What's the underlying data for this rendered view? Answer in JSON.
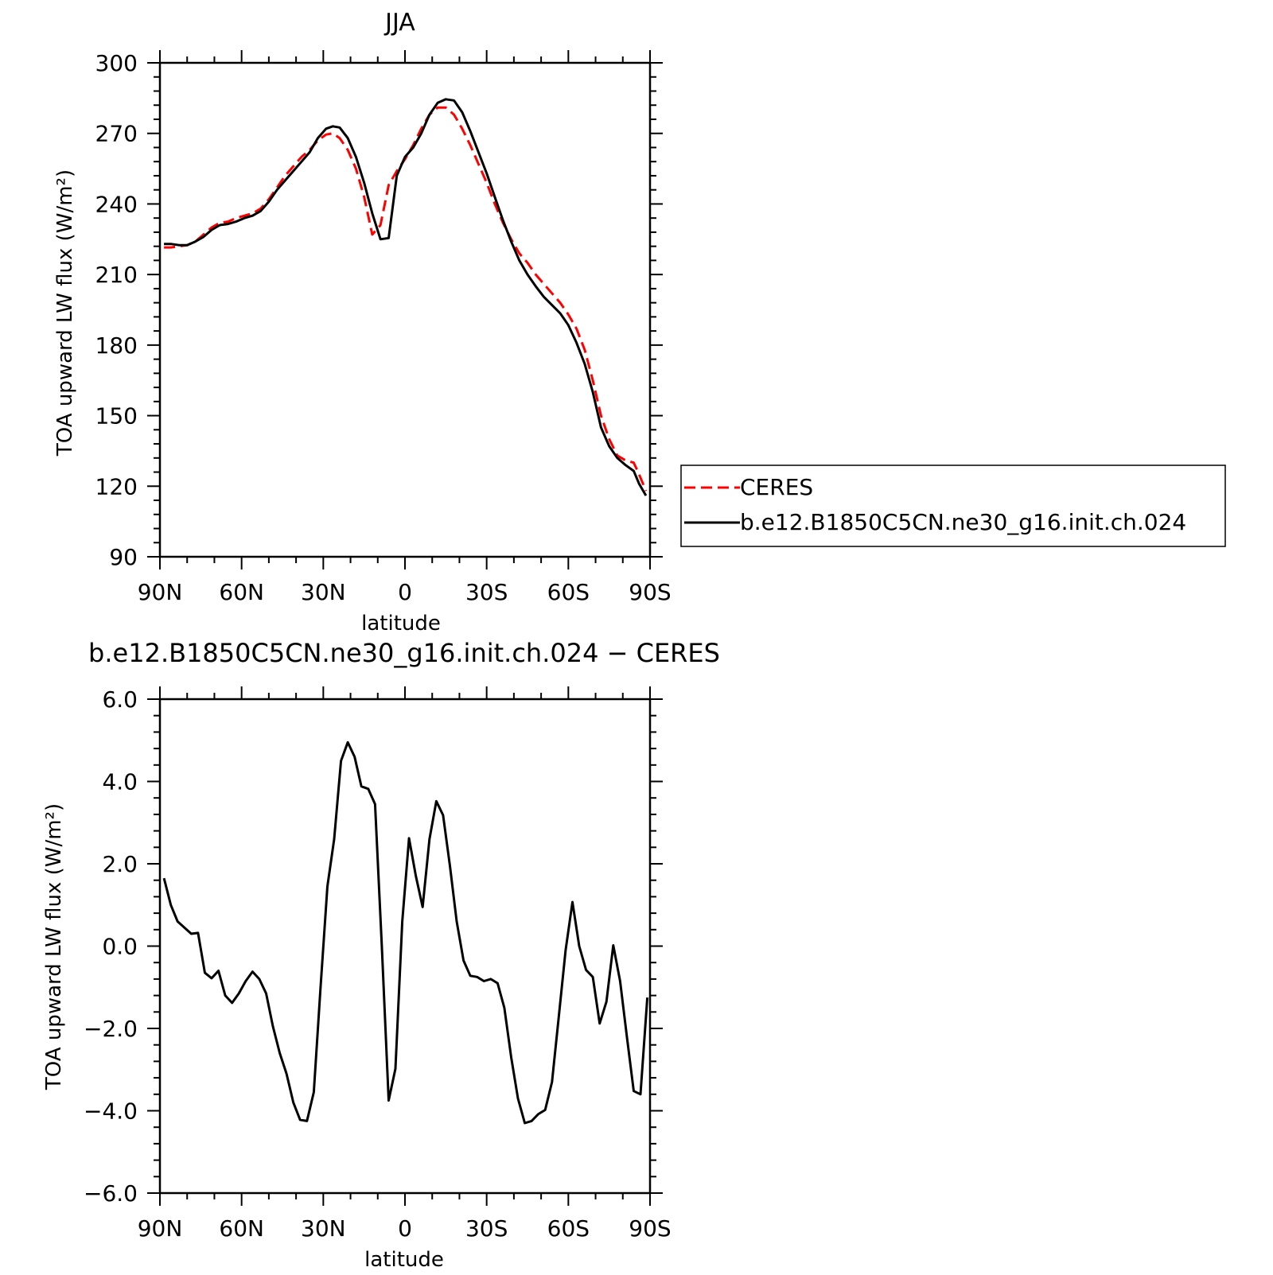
{
  "chart_data": [
    {
      "type": "line",
      "title": "JJA",
      "xlabel": "latitude",
      "ylabel": "TOA upward LW flux (W/m²)",
      "ylim": [
        90,
        300
      ],
      "yticks": [
        "90",
        "120",
        "150",
        "180",
        "210",
        "240",
        "270",
        "300"
      ],
      "xlim": [
        90,
        -90
      ],
      "xticks": [
        "90N",
        "60N",
        "30N",
        "0",
        "30S",
        "60S",
        "90S"
      ],
      "grid": false,
      "legend_position": "right",
      "series": [
        {
          "name": "CERES",
          "color": "#ff0000",
          "style": "dashed",
          "x": [
            88.5,
            86,
            83,
            80,
            77,
            74,
            71,
            68,
            65,
            62,
            59,
            56,
            53,
            50,
            47,
            44,
            41,
            38,
            35,
            32,
            29,
            26.5,
            24,
            21,
            18,
            15,
            12,
            9,
            6,
            3,
            0,
            -3,
            -6,
            -9,
            -12,
            -15,
            -18,
            -21,
            -24,
            -27,
            -30,
            -33,
            -36,
            -39,
            -42,
            -45,
            -48,
            -51,
            -54,
            -57,
            -60,
            -63,
            -66,
            -69,
            -72,
            -75,
            -78,
            -81,
            -84,
            -86,
            -88.5
          ],
          "y": [
            221.5,
            221.5,
            222,
            222.5,
            224,
            227,
            230,
            232,
            232.5,
            234,
            235,
            236,
            238,
            242,
            247,
            252,
            256,
            260,
            263,
            267,
            269.5,
            270,
            268,
            263,
            255,
            243,
            227,
            231,
            248,
            254,
            259,
            265,
            272,
            278,
            281,
            281,
            278,
            272,
            265,
            257,
            249,
            240,
            232,
            225,
            219,
            215,
            210,
            206,
            202,
            198,
            193,
            187,
            178,
            165,
            150,
            140,
            133,
            131,
            130,
            125,
            118
          ]
        },
        {
          "name": "b.e12.B1850C5CN.ne30_g16.init.ch.024",
          "color": "#000000",
          "style": "solid",
          "x": [
            88.5,
            86,
            83,
            80,
            77,
            74,
            71,
            68,
            65,
            62,
            59,
            56,
            53,
            50,
            47,
            44,
            41,
            38,
            35,
            32,
            29,
            26.5,
            24,
            21,
            18,
            15,
            12,
            9,
            6,
            3,
            0,
            -3,
            -6,
            -9,
            -12,
            -15,
            -18,
            -21,
            -24,
            -27,
            -30,
            -33,
            -36,
            -39,
            -42,
            -45,
            -48,
            -51,
            -54,
            -57,
            -60,
            -63,
            -66,
            -69,
            -72,
            -75,
            -78,
            -81,
            -84,
            -86,
            -88.5
          ],
          "y": [
            223,
            223,
            222.5,
            222.5,
            224,
            226,
            229,
            231,
            231.5,
            232.5,
            234,
            235,
            237,
            241,
            246,
            250,
            254,
            258,
            262,
            268,
            272,
            273,
            272.5,
            268,
            260,
            249,
            236,
            225,
            225.5,
            252,
            260,
            264,
            270,
            278,
            283,
            284.5,
            284,
            279,
            271,
            262,
            253,
            243,
            233,
            224,
            216,
            210,
            205,
            200.5,
            197,
            193.5,
            188.5,
            181,
            172,
            160,
            145,
            137,
            132,
            129,
            126.5,
            121,
            116
          ]
        }
      ]
    },
    {
      "type": "line",
      "title": "b.e12.B1850C5CN.ne30_g16.init.ch.024 − CERES",
      "xlabel": "latitude",
      "ylabel": "TOA upward LW flux (W/m²)",
      "ylim": [
        -6,
        6
      ],
      "yticks": [
        "−6.0",
        "−4.0",
        "−2.0",
        "0.0",
        "2.0",
        "4.0",
        "6.0"
      ],
      "xlim": [
        90,
        -90
      ],
      "xticks": [
        "90N",
        "60N",
        "30N",
        "0",
        "30S",
        "60S",
        "90S"
      ],
      "grid": false,
      "series": [
        {
          "color": "#000000",
          "style": "solid",
          "x": [
            88.5,
            86,
            83.5,
            81,
            78.5,
            76,
            73.5,
            71,
            68.5,
            66,
            63.5,
            61,
            58.5,
            56,
            53.5,
            51,
            48.5,
            46,
            43.5,
            41,
            38.5,
            36,
            33.5,
            31,
            28.5,
            26,
            23.5,
            21,
            18.5,
            16,
            13.5,
            11,
            8.5,
            6,
            3.5,
            1,
            -1.5,
            -4,
            -6.5,
            -9,
            -11.5,
            -14,
            -16.5,
            -19,
            -21.5,
            -24,
            -26.5,
            -29,
            -31.5,
            -34,
            -36.5,
            -39,
            -41.5,
            -44,
            -46.5,
            -49,
            -51.5,
            -54,
            -56.5,
            -59,
            -61.5,
            -64,
            -66.5,
            -69,
            -71.5,
            -74,
            -76.5,
            -79,
            -81.5,
            -84,
            -86.5,
            -89
          ],
          "y": [
            1.65,
            1.0,
            0.6,
            0.45,
            0.3,
            0.32,
            -0.65,
            -0.78,
            -0.6,
            -1.2,
            -1.38,
            -1.15,
            -0.85,
            -0.62,
            -0.8,
            -1.15,
            -1.95,
            -2.6,
            -3.1,
            -3.8,
            -4.22,
            -4.25,
            -3.55,
            -1.0,
            1.45,
            2.6,
            4.5,
            4.95,
            4.6,
            3.88,
            3.82,
            3.45,
            0.0,
            -3.75,
            -2.98,
            0.6,
            2.62,
            1.7,
            0.95,
            2.6,
            3.52,
            3.18,
            1.95,
            0.6,
            -0.35,
            -0.72,
            -0.75,
            -0.85,
            -0.8,
            -0.9,
            -1.5,
            -2.7,
            -3.7,
            -4.3,
            -4.25,
            -4.08,
            -3.98,
            -3.3,
            -1.7,
            -0.1,
            1.07,
            0.0,
            -0.58,
            -0.75,
            -1.88,
            -1.35,
            0.02,
            -0.85,
            -2.2,
            -3.52,
            -3.6,
            -1.25
          ]
        }
      ]
    }
  ]
}
